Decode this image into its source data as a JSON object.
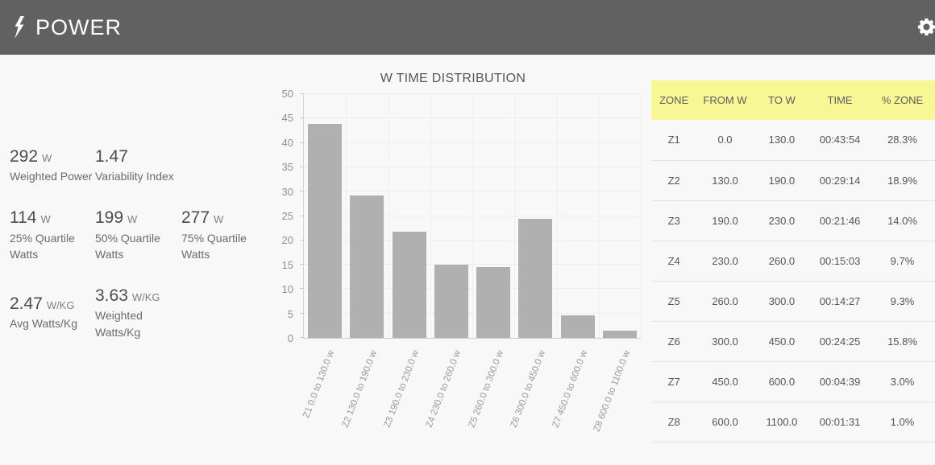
{
  "header": {
    "title": "POWER",
    "icons": [
      {
        "name": "lightning-bolt-icon"
      },
      {
        "name": "settings-gear-icon"
      }
    ]
  },
  "stats": {
    "items": [
      {
        "value": "292",
        "unit": "W",
        "label": "Weighted Power"
      },
      {
        "value": "1.47",
        "unit": "",
        "label": "Variability Index"
      },
      {
        "value": "114",
        "unit": "W",
        "label": "25% Quartile Watts"
      },
      {
        "value": "199",
        "unit": "W",
        "label": "50% Quartile Watts"
      },
      {
        "value": "277",
        "unit": "W",
        "label": "75% Quartile Watts"
      },
      {
        "value": "2.47",
        "unit": "W/KG",
        "label": "Avg Watts/Kg"
      },
      {
        "value": "3.63",
        "unit": "W/KG",
        "label": "Weighted Watts/Kg"
      }
    ]
  },
  "chart_data": {
    "type": "bar",
    "title": "W TIME DISTRIBUTION",
    "categories": [
      "Z1 0.0 to 130.0 w",
      "Z2 130.0 to 190.0 w",
      "Z3 190.0 to 230.0 w",
      "Z4 230.0 to 260.0 w",
      "Z5 260.0 to 300.0 w",
      "Z6 300.0 to 450.0 w",
      "Z7 450.0 to 600.0 w",
      "Z8 600.0 to 1100.0 w"
    ],
    "values": [
      43.9,
      29.2,
      21.8,
      15.1,
      14.5,
      24.4,
      4.7,
      1.5
    ],
    "value_unit": "minutes",
    "xlabel": "",
    "ylabel": "",
    "ylim": [
      0,
      50
    ],
    "ytick_step": 5,
    "grid": true,
    "legend": false,
    "bar_color": "#b0b0b0"
  },
  "table": {
    "columns": [
      "ZONE",
      "FROM W",
      "TO W",
      "TIME",
      "% ZONE"
    ],
    "rows": [
      [
        "Z1",
        "0.0",
        "130.0",
        "00:43:54",
        "28.3%"
      ],
      [
        "Z2",
        "130.0",
        "190.0",
        "00:29:14",
        "18.9%"
      ],
      [
        "Z3",
        "190.0",
        "230.0",
        "00:21:46",
        "14.0%"
      ],
      [
        "Z4",
        "230.0",
        "260.0",
        "00:15:03",
        "9.7%"
      ],
      [
        "Z5",
        "260.0",
        "300.0",
        "00:14:27",
        "9.3%"
      ],
      [
        "Z6",
        "300.0",
        "450.0",
        "00:24:25",
        "15.8%"
      ],
      [
        "Z7",
        "450.0",
        "600.0",
        "00:04:39",
        "3.0%"
      ],
      [
        "Z8",
        "600.0",
        "1100.0",
        "00:01:31",
        "1.0%"
      ]
    ]
  },
  "colors": {
    "header_bg": "#616161",
    "page_bg": "#f8f8f8",
    "table_header_bg": "#f7f796",
    "bar": "#b0b0b0"
  }
}
